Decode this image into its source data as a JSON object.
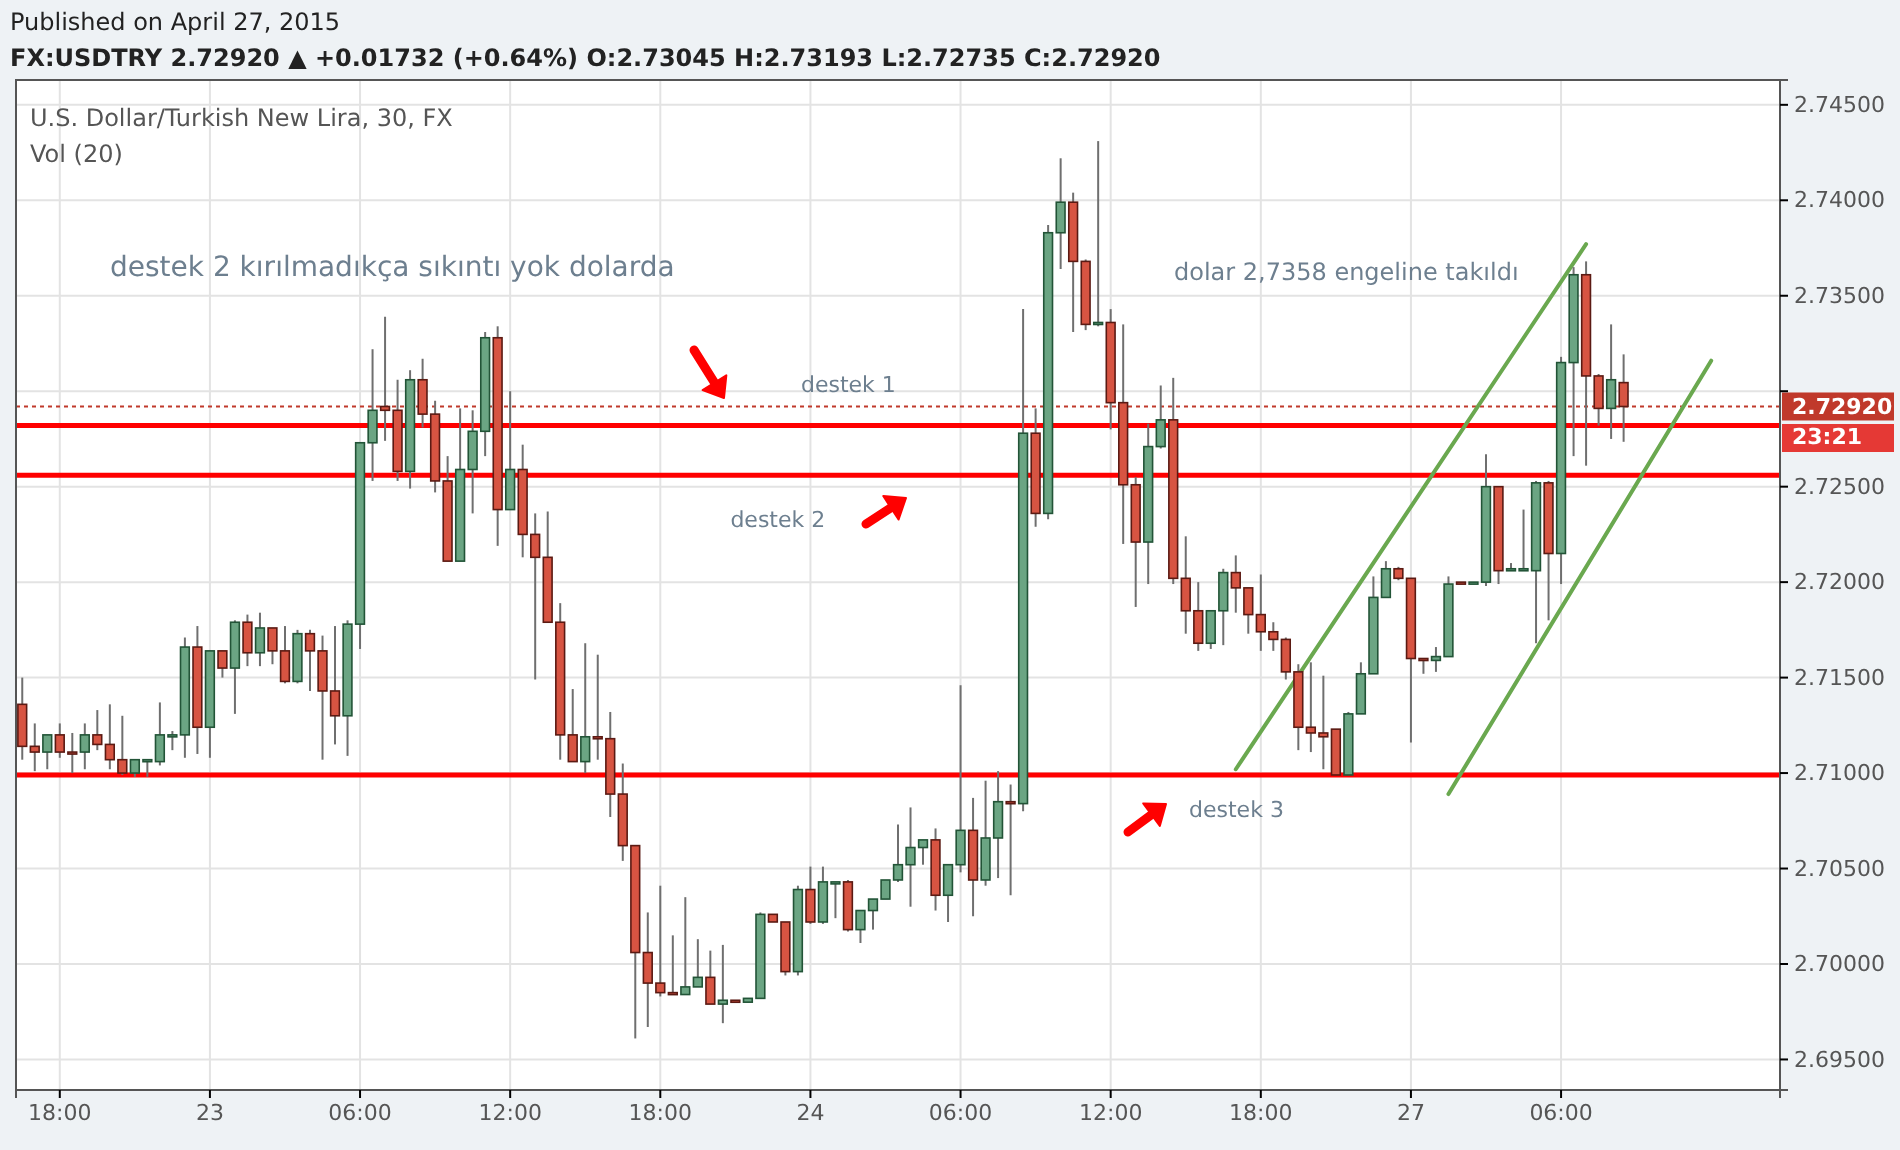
{
  "chart_data": {
    "type": "candlestick",
    "title": "U.S. Dollar/Turkish New Lira, 30, FX",
    "annotations": [
      "Published on April 27, 2015",
      "FX:USDTRY 2.72920 ▲ +0.01732 (+0.64%) O:2.73045 H:2.73193 L:2.72735 C:2.72920",
      "Vol (20)",
      "destek 2 kırılmadıkça sıkıntı yok dolarda",
      "dolar 2,7358 engeline takıldı",
      "23:21"
    ],
    "categories": [
      null,
      null,
      null,
      "18:00",
      null,
      null,
      null,
      null,
      null,
      null,
      null,
      null,
      null,
      null,
      null,
      "23",
      null,
      null,
      null,
      null,
      null,
      null,
      null,
      null,
      null,
      null,
      null,
      "06:00",
      null,
      null,
      null,
      null,
      null,
      null,
      null,
      null,
      null,
      null,
      null,
      "12:00",
      null,
      null,
      null,
      null,
      null,
      null,
      null,
      null,
      null,
      null,
      null,
      "18:00",
      null,
      null,
      null,
      null,
      null,
      null,
      null,
      null,
      null,
      null,
      null,
      "24",
      null,
      null,
      null,
      null,
      null,
      null,
      null,
      null,
      null,
      null,
      null,
      "06:00",
      null,
      null,
      null,
      null,
      null,
      null,
      null,
      null,
      null,
      null,
      null,
      "12:00",
      null,
      null,
      null,
      null,
      null,
      null,
      null,
      null,
      null,
      null,
      null,
      "18:00",
      null,
      null,
      null,
      null,
      null,
      null,
      null,
      null,
      null,
      null,
      null,
      "27",
      null,
      null,
      null,
      null,
      null,
      null,
      null,
      null,
      null,
      null,
      null,
      "06:00",
      null,
      null,
      null,
      null,
      null,
      null,
      null,
      null,
      null,
      null,
      null,
      null,
      null,
      null,
      null,
      null,
      null
    ],
    "ohlc": [
      [
        2.7136,
        2.715,
        2.7107,
        2.7114
      ],
      [
        2.7114,
        2.7126,
        2.7101,
        2.7111
      ],
      [
        2.7111,
        2.712,
        2.7102,
        2.712
      ],
      [
        2.712,
        2.7126,
        2.7108,
        2.7111
      ],
      [
        2.7111,
        2.7121,
        2.71,
        2.711
      ],
      [
        2.7111,
        2.7126,
        2.7102,
        2.712
      ],
      [
        2.712,
        2.7133,
        2.7112,
        2.7115
      ],
      [
        2.7115,
        2.7136,
        2.7102,
        2.7107
      ],
      [
        2.7107,
        2.713,
        2.7099,
        2.71
      ],
      [
        2.71,
        2.7107,
        2.7098,
        2.7107
      ],
      [
        2.7106,
        2.7107,
        2.7098,
        2.7107
      ],
      [
        2.7106,
        2.7137,
        2.7104,
        2.712
      ],
      [
        2.7119,
        2.7122,
        2.7112,
        2.712
      ],
      [
        2.712,
        2.7171,
        2.7108,
        2.7166
      ],
      [
        2.7166,
        2.7177,
        2.711,
        2.7124
      ],
      [
        2.7124,
        2.7164,
        2.7108,
        2.7164
      ],
      [
        2.7164,
        2.7164,
        2.715,
        2.7155
      ],
      [
        2.7155,
        2.718,
        2.7131,
        2.7179
      ],
      [
        2.7179,
        2.7183,
        2.7156,
        2.7163
      ],
      [
        2.7163,
        2.7184,
        2.7156,
        2.7176
      ],
      [
        2.7176,
        2.7176,
        2.7157,
        2.7164
      ],
      [
        2.7164,
        2.7177,
        2.7147,
        2.7148
      ],
      [
        2.7148,
        2.7175,
        2.7147,
        2.7173
      ],
      [
        2.7173,
        2.7175,
        2.7143,
        2.7164
      ],
      [
        2.7164,
        2.7172,
        2.7107,
        2.7143
      ],
      [
        2.7143,
        2.7177,
        2.7115,
        2.713
      ],
      [
        2.713,
        2.718,
        2.7109,
        2.7178
      ],
      [
        2.7178,
        2.7273,
        2.7165,
        2.7273
      ],
      [
        2.7273,
        2.7322,
        2.7253,
        2.729
      ],
      [
        2.7292,
        2.7339,
        2.7274,
        2.729
      ],
      [
        2.729,
        2.7306,
        2.7253,
        2.7258
      ],
      [
        2.7258,
        2.7311,
        2.7249,
        2.7306
      ],
      [
        2.7306,
        2.7317,
        2.7281,
        2.7288
      ],
      [
        2.7288,
        2.7295,
        2.7247,
        2.7253
      ],
      [
        2.7253,
        2.7266,
        2.7211,
        2.7211
      ],
      [
        2.7211,
        2.7291,
        2.7211,
        2.7259
      ],
      [
        2.7259,
        2.729,
        2.7236,
        2.7279
      ],
      [
        2.7279,
        2.7331,
        2.7266,
        2.7328
      ],
      [
        2.7328,
        2.7334,
        2.7219,
        2.7238
      ],
      [
        2.7238,
        2.73,
        2.7238,
        2.7259
      ],
      [
        2.7259,
        2.7272,
        2.7213,
        2.7225
      ],
      [
        2.7225,
        2.7236,
        2.7149,
        2.7213
      ],
      [
        2.7213,
        2.7237,
        2.7179,
        2.7179
      ],
      [
        2.7179,
        2.7189,
        2.7107,
        2.712
      ],
      [
        2.712,
        2.7144,
        2.7106,
        2.7106
      ],
      [
        2.7106,
        2.7168,
        2.71,
        2.7119
      ],
      [
        2.7119,
        2.7162,
        2.7107,
        2.7118
      ],
      [
        2.7118,
        2.7132,
        2.7077,
        2.7089
      ],
      [
        2.7089,
        2.7105,
        2.7054,
        2.7062
      ],
      [
        2.7062,
        2.7062,
        2.6961,
        2.7006
      ],
      [
        2.7006,
        2.7027,
        2.6967,
        2.699
      ],
      [
        2.699,
        2.7041,
        2.6983,
        2.6985
      ],
      [
        2.6985,
        2.7015,
        2.6984,
        2.6984
      ],
      [
        2.6984,
        2.7035,
        2.6984,
        2.6988
      ],
      [
        2.6988,
        2.7013,
        2.6988,
        2.6993
      ],
      [
        2.6993,
        2.7007,
        2.6979,
        2.6979
      ],
      [
        2.6979,
        2.701,
        2.6969,
        2.6981
      ],
      [
        2.6981,
        2.6981,
        2.698,
        2.698
      ],
      [
        2.698,
        2.6982,
        2.698,
        2.6982
      ],
      [
        2.6982,
        2.7027,
        2.6982,
        2.7026
      ],
      [
        2.7026,
        2.7026,
        2.7022,
        2.7022
      ],
      [
        2.7022,
        2.7022,
        2.6994,
        2.6996
      ],
      [
        2.6996,
        2.7041,
        2.6994,
        2.7039
      ],
      [
        2.7039,
        2.7051,
        2.7021,
        2.7022
      ],
      [
        2.7022,
        2.7051,
        2.7021,
        2.7043
      ],
      [
        2.7042,
        2.7043,
        2.7024,
        2.7043
      ],
      [
        2.7043,
        2.7044,
        2.7017,
        2.7018
      ],
      [
        2.7018,
        2.7028,
        2.7011,
        2.7028
      ],
      [
        2.7028,
        2.7034,
        2.7018,
        2.7034
      ],
      [
        2.7034,
        2.7044,
        2.7034,
        2.7044
      ],
      [
        2.7044,
        2.7073,
        2.7043,
        2.7052
      ],
      [
        2.7052,
        2.7082,
        2.703,
        2.7061
      ],
      [
        2.7061,
        2.7065,
        2.7052,
        2.7065
      ],
      [
        2.7065,
        2.7071,
        2.7028,
        2.7036
      ],
      [
        2.7036,
        2.7052,
        2.7022,
        2.7052
      ],
      [
        2.7052,
        2.7146,
        2.7048,
        2.707
      ],
      [
        2.707,
        2.7087,
        2.7025,
        2.7044
      ],
      [
        2.7044,
        2.7096,
        2.7041,
        2.7066
      ],
      [
        2.7066,
        2.7101,
        2.7045,
        2.7085
      ],
      [
        2.7085,
        2.7094,
        2.7036,
        2.7084
      ],
      [
        2.7084,
        2.7343,
        2.708,
        2.7278
      ],
      [
        2.7278,
        2.7291,
        2.7229,
        2.7236
      ],
      [
        2.7236,
        2.7387,
        2.7233,
        2.7383
      ],
      [
        2.7383,
        2.7422,
        2.7364,
        2.7399
      ],
      [
        2.7399,
        2.7404,
        2.7331,
        2.7368
      ],
      [
        2.7368,
        2.7369,
        2.7332,
        2.7335
      ],
      [
        2.7335,
        2.7431,
        2.7334,
        2.7336
      ],
      [
        2.7336,
        2.7343,
        2.728,
        2.7294
      ],
      [
        2.7294,
        2.7335,
        2.722,
        2.7251
      ],
      [
        2.7251,
        2.7255,
        2.7187,
        2.7221
      ],
      [
        2.7221,
        2.7283,
        2.7199,
        2.7271
      ],
      [
        2.7271,
        2.7303,
        2.727,
        2.7285
      ],
      [
        2.7285,
        2.7307,
        2.7199,
        2.7202
      ],
      [
        2.7202,
        2.7224,
        2.7173,
        2.7185
      ],
      [
        2.7185,
        2.72,
        2.7164,
        2.7168
      ],
      [
        2.7168,
        2.7185,
        2.7165,
        2.7185
      ],
      [
        2.7185,
        2.7207,
        2.7167,
        2.7205
      ],
      [
        2.7205,
        2.7214,
        2.7184,
        2.7197
      ],
      [
        2.7197,
        2.7197,
        2.7173,
        2.7183
      ],
      [
        2.7183,
        2.7204,
        2.7164,
        2.7174
      ],
      [
        2.7174,
        2.7179,
        2.7164,
        2.717
      ],
      [
        2.717,
        2.7171,
        2.7149,
        2.7153
      ],
      [
        2.7153,
        2.7157,
        2.7112,
        2.7124
      ],
      [
        2.7124,
        2.7158,
        2.7111,
        2.7121
      ],
      [
        2.7121,
        2.7151,
        2.7102,
        2.7119
      ],
      [
        2.7123,
        2.7123,
        2.7099,
        2.7099
      ],
      [
        2.7099,
        2.7132,
        2.7099,
        2.7131
      ],
      [
        2.7131,
        2.7158,
        2.7131,
        2.7152
      ],
      [
        2.7152,
        2.7203,
        2.7152,
        2.7192
      ],
      [
        2.7192,
        2.7211,
        2.7192,
        2.7207
      ],
      [
        2.7207,
        2.7208,
        2.7201,
        2.7202
      ],
      [
        2.7202,
        2.7202,
        2.7116,
        2.716
      ],
      [
        2.716,
        2.716,
        2.7152,
        2.7159
      ],
      [
        2.7159,
        2.7166,
        2.7153,
        2.7161
      ],
      [
        2.7161,
        2.7203,
        2.7161,
        2.7199
      ],
      [
        2.72,
        2.72,
        2.7199,
        2.7199
      ],
      [
        2.7199,
        2.72,
        2.7199,
        2.72
      ],
      [
        2.72,
        2.7267,
        2.7198,
        2.725
      ],
      [
        2.725,
        2.725,
        2.7199,
        2.7206
      ],
      [
        2.7206,
        2.721,
        2.7206,
        2.7207
      ],
      [
        2.7206,
        2.7238,
        2.7206,
        2.7207
      ],
      [
        2.7206,
        2.7253,
        2.7168,
        2.7252
      ],
      [
        2.7252,
        2.7253,
        2.718,
        2.7215
      ],
      [
        2.7215,
        2.7318,
        2.7199,
        2.7315
      ],
      [
        2.7315,
        2.7365,
        2.7266,
        2.7361
      ],
      [
        2.7361,
        2.7368,
        2.7261,
        2.7308
      ],
      [
        2.7308,
        2.7309,
        2.7282,
        2.7291
      ],
      [
        2.7291,
        2.7335,
        2.7275,
        2.7306
      ],
      [
        2.73045,
        2.73193,
        2.72735,
        2.7292
      ],
      null,
      null,
      null,
      null,
      null,
      null,
      null,
      null,
      null,
      null,
      null,
      null
    ],
    "series": [
      {
        "type": "line",
        "color": "#6aa84f",
        "values": [
          null,
          null,
          null,
          null,
          null,
          null,
          null,
          null,
          null,
          null,
          null,
          null,
          null,
          null,
          null,
          null,
          null,
          null,
          null,
          null,
          null,
          null,
          null,
          null,
          null,
          null,
          null,
          null,
          null,
          null,
          null,
          null,
          null,
          null,
          null,
          null,
          null,
          null,
          null,
          null,
          null,
          null,
          null,
          null,
          null,
          null,
          null,
          null,
          null,
          null,
          null,
          null,
          null,
          null,
          null,
          null,
          null,
          null,
          null,
          null,
          null,
          null,
          null,
          null,
          null,
          null,
          null,
          null,
          null,
          null,
          null,
          null,
          null,
          null,
          null,
          null,
          null,
          null,
          null,
          null,
          null,
          null,
          null,
          null,
          null,
          null,
          null,
          null,
          null,
          null,
          null,
          null,
          null,
          null,
          null,
          null,
          null,
          2.7102,
          null,
          null,
          null,
          null,
          null,
          null,
          null,
          null,
          null,
          null,
          null,
          null,
          null,
          null,
          null,
          null,
          null,
          null,
          null,
          null,
          null,
          null,
          null,
          null,
          null,
          null,
          null,
          2.7377,
          null,
          null,
          null,
          null,
          null,
          null,
          null,
          null,
          null,
          null,
          null,
          null,
          null,
          null,
          null
        ]
      },
      {
        "type": "line",
        "color": "#6aa84f",
        "values": [
          null,
          null,
          null,
          null,
          null,
          null,
          null,
          null,
          null,
          null,
          null,
          null,
          null,
          null,
          null,
          null,
          null,
          null,
          null,
          null,
          null,
          null,
          null,
          null,
          null,
          null,
          null,
          null,
          null,
          null,
          null,
          null,
          null,
          null,
          null,
          null,
          null,
          null,
          null,
          null,
          null,
          null,
          null,
          null,
          null,
          null,
          null,
          null,
          null,
          null,
          null,
          null,
          null,
          null,
          null,
          null,
          null,
          null,
          null,
          null,
          null,
          null,
          null,
          null,
          null,
          null,
          null,
          null,
          null,
          null,
          null,
          null,
          null,
          null,
          null,
          null,
          null,
          null,
          null,
          null,
          null,
          null,
          null,
          null,
          null,
          null,
          null,
          null,
          null,
          null,
          null,
          null,
          null,
          null,
          null,
          null,
          null,
          null,
          null,
          null,
          null,
          null,
          null,
          null,
          null,
          null,
          null,
          null,
          null,
          null,
          null,
          null,
          null,
          null,
          2.7089,
          null,
          null,
          null,
          null,
          null,
          null,
          null,
          null,
          null,
          null,
          null,
          null,
          null,
          null,
          null,
          null,
          null,
          null,
          null,
          null,
          2.7316,
          null,
          null,
          null,
          null,
          null
        ]
      }
    ],
    "ylim": [
      2.6934,
      2.7463
    ],
    "yticks": [
      {
        "value": 2.695,
        "label": "2.69500"
      },
      {
        "value": 2.7,
        "label": "2.70000"
      },
      {
        "value": 2.705,
        "label": "2.70500"
      },
      {
        "value": 2.71,
        "label": "2.71000"
      },
      {
        "value": 2.715,
        "label": "2.71500"
      },
      {
        "value": 2.72,
        "label": "2.72000"
      },
      {
        "value": 2.725,
        "label": "2.72500"
      },
      {
        "value": 2.73,
        "label": null
      },
      {
        "value": 2.735,
        "label": "2.73500"
      },
      {
        "value": 2.74,
        "label": "2.74000"
      },
      {
        "value": 2.745,
        "label": "2.74500"
      }
    ],
    "grid": true,
    "ref_lines": [
      {
        "axis": "y",
        "value": 2.7282,
        "label": "destek 1",
        "color": "#ff0000",
        "line_style": "solid"
      },
      {
        "axis": "y",
        "value": 2.7256,
        "label": "destek 2",
        "color": "#ff0000",
        "line_style": "solid"
      },
      {
        "axis": "y",
        "value": 2.7099,
        "label": "destek 3",
        "color": "#ff0000",
        "line_style": "solid"
      },
      {
        "axis": "y",
        "value": 2.7292,
        "label": "2.72920",
        "color": "#c0392b",
        "line_style": "dotted"
      }
    ]
  }
}
